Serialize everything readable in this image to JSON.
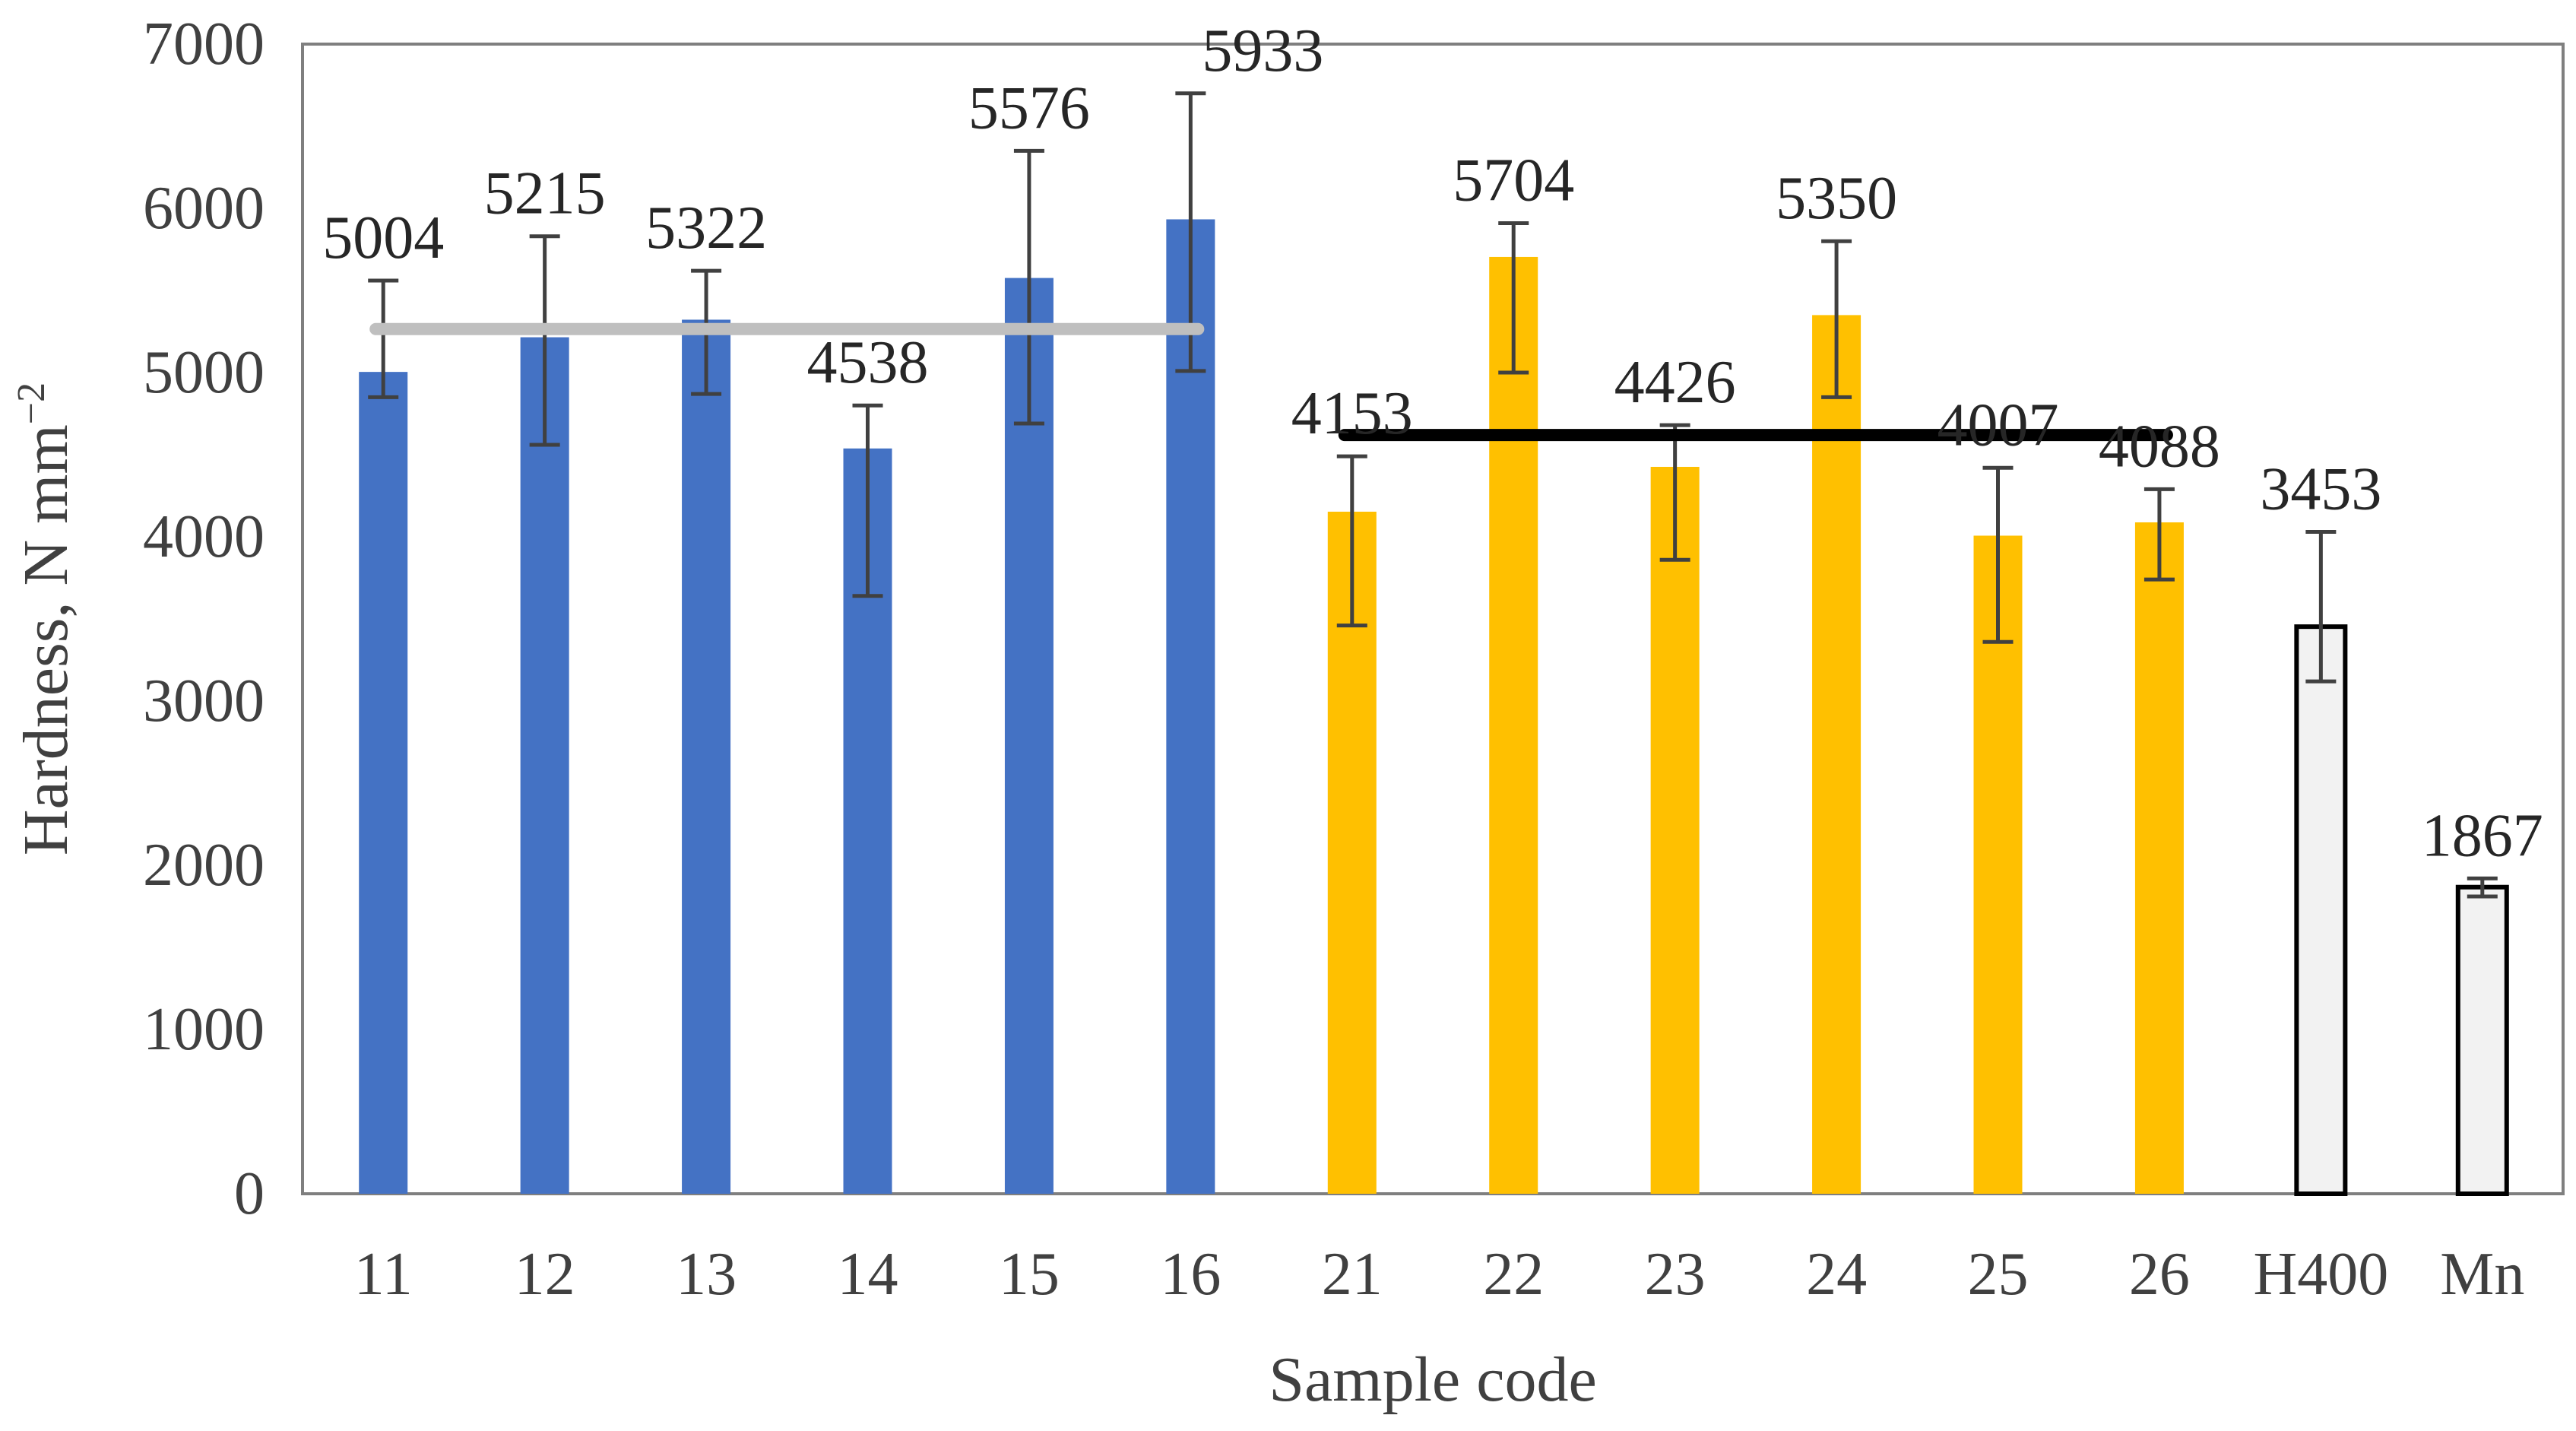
{
  "chart_data": {
    "type": "bar",
    "title": "",
    "xlabel": "Sample code",
    "ylabel": "Hardness, N mm",
    "ylabel_superscript": "−2",
    "ylim": [
      0,
      7000
    ],
    "yticks": [
      0,
      1000,
      2000,
      3000,
      4000,
      5000,
      6000,
      7000
    ],
    "grid": false,
    "legend": "none",
    "categories": [
      "11",
      "12",
      "13",
      "14",
      "15",
      "16",
      "21",
      "22",
      "23",
      "24",
      "25",
      "26",
      "H400",
      "Mn"
    ],
    "values": [
      5004,
      5215,
      5322,
      4538,
      5576,
      5933,
      4153,
      5704,
      4426,
      5350,
      4007,
      4088,
      3453,
      1867
    ],
    "error_low": [
      4850,
      4560,
      4870,
      3640,
      4690,
      5010,
      3460,
      5000,
      3860,
      4850,
      3360,
      3740,
      3120,
      1810
    ],
    "error_high": [
      5560,
      5830,
      5620,
      4800,
      6350,
      6700,
      4490,
      5910,
      4680,
      5800,
      4420,
      4290,
      4030,
      1920
    ],
    "bar_groups": [
      "series1",
      "series1",
      "series1",
      "series1",
      "series1",
      "series1",
      "series2",
      "series2",
      "series2",
      "series2",
      "series2",
      "series2",
      "reference",
      "reference"
    ],
    "group_colors": {
      "series1": "#4472C4",
      "series2": "#FFC000",
      "reference": "#F2F2F2"
    },
    "reference_outline": "#000000",
    "mean_lines": [
      {
        "name": "mean-11-16",
        "from": "11",
        "to": "16",
        "value": 5265,
        "color": "#BFBFBF"
      },
      {
        "name": "mean-21-26",
        "from": "21",
        "to": "26",
        "value": 4620,
        "color": "#000000"
      }
    ]
  }
}
